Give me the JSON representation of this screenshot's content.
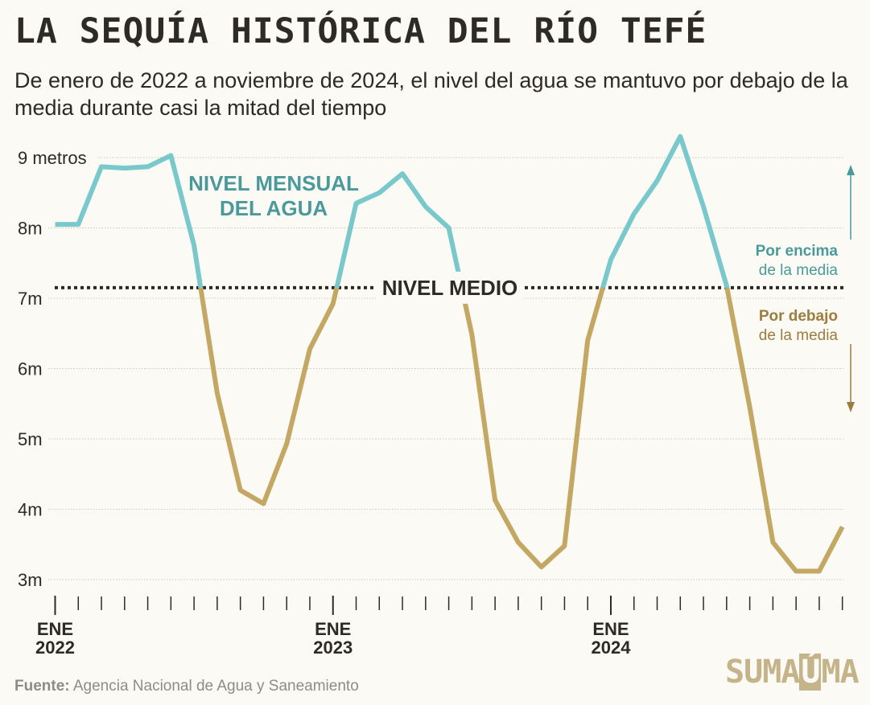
{
  "title": "LA SEQUÍA HISTÓRICA DEL RÍO TEFÉ",
  "subtitle": "De enero de 2022 a noviembre de 2024, el nivel del agua se mantuvo por debajo de la media durante casi la mitad del tiempo",
  "footer": {
    "source_label": "Fuente:",
    "source_text": "Agencia Nacional de Agua y Saneamiento"
  },
  "logo_text": "SUMAÚMA",
  "colors": {
    "above": "#78c8cc",
    "below": "#c4a763",
    "above_text": "#4a9a9c",
    "below_text": "#9c7d3f",
    "text": "#2e2a26"
  },
  "chart_data": {
    "type": "line",
    "title": "LA SEQUÍA HISTÓRICA DEL RÍO TEFÉ",
    "ylabel": "",
    "xlabel": "",
    "ylim": [
      3,
      9
    ],
    "y_ticks": [
      {
        "value": 9,
        "label": "9 metros"
      },
      {
        "value": 8,
        "label": "8m"
      },
      {
        "value": 7,
        "label": "7m"
      },
      {
        "value": 6,
        "label": "6m"
      },
      {
        "value": 5,
        "label": "5m"
      },
      {
        "value": 4,
        "label": "4m"
      },
      {
        "value": 3,
        "label": "3m"
      }
    ],
    "x_ticks": [
      {
        "index": 0,
        "line1": "ENE",
        "line2": "2022"
      },
      {
        "index": 12,
        "line1": "ENE",
        "line2": "2023"
      },
      {
        "index": 24,
        "line1": "ENE",
        "line2": "2024"
      }
    ],
    "x": [
      "2022-01",
      "2022-02",
      "2022-03",
      "2022-04",
      "2022-05",
      "2022-06",
      "2022-07",
      "2022-08",
      "2022-09",
      "2022-10",
      "2022-11",
      "2022-12",
      "2023-01",
      "2023-02",
      "2023-03",
      "2023-04",
      "2023-05",
      "2023-06",
      "2023-07",
      "2023-08",
      "2023-09",
      "2023-10",
      "2023-11",
      "2023-12",
      "2024-01",
      "2024-02",
      "2024-03",
      "2024-04",
      "2024-05",
      "2024-06",
      "2024-07",
      "2024-08",
      "2024-09",
      "2024-10",
      "2024-11"
    ],
    "values": [
      8.05,
      8.05,
      8.87,
      8.85,
      8.87,
      9.03,
      7.75,
      5.65,
      4.27,
      4.08,
      4.93,
      6.28,
      6.92,
      8.35,
      8.5,
      8.77,
      8.3,
      8.0,
      6.48,
      4.13,
      3.53,
      3.18,
      3.48,
      6.4,
      7.55,
      8.2,
      8.67,
      9.3,
      8.3,
      7.18,
      5.45,
      3.53,
      3.12,
      3.12,
      3.75
    ],
    "reference_line": {
      "value": 7.15,
      "label": "NIVEL MEDIO"
    },
    "series": [
      {
        "name": "NIVEL MENSUAL DEL AGUA",
        "values": [
          8.05,
          8.05,
          8.87,
          8.85,
          8.87,
          9.03,
          7.75,
          5.65,
          4.27,
          4.08,
          4.93,
          6.28,
          6.92,
          8.35,
          8.5,
          8.77,
          8.3,
          8.0,
          6.48,
          4.13,
          3.53,
          3.18,
          3.48,
          6.4,
          7.55,
          8.2,
          8.67,
          9.3,
          8.3,
          7.18,
          5.45,
          3.53,
          3.12,
          3.12,
          3.75
        ]
      }
    ],
    "series_label_lines": [
      "NIVEL MENSUAL",
      "DEL AGUA"
    ],
    "legend": {
      "above": {
        "bold": "Por encima",
        "normal": "de la media"
      },
      "below": {
        "bold": "Por debajo",
        "normal": "de la media"
      }
    },
    "grid": true
  }
}
